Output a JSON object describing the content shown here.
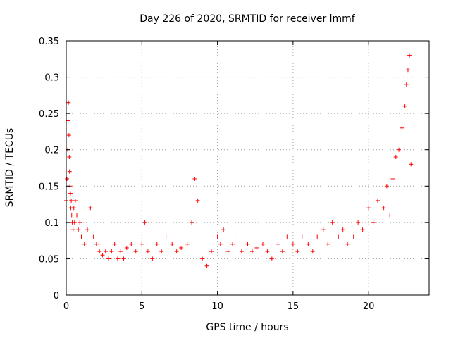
{
  "chart_data": {
    "type": "scatter",
    "title": "Day 226 of 2020, SRMTID for receiver lmmf",
    "xlabel": "GPS time / hours",
    "ylabel": "SRMTID / TECUs",
    "xlim": [
      0,
      24
    ],
    "ylim": [
      0,
      0.35
    ],
    "xticks": [
      0,
      5,
      10,
      15,
      20
    ],
    "yticks": [
      0,
      0.05,
      0.1,
      0.15,
      0.2,
      0.25,
      0.3,
      0.35
    ],
    "xtick_labels": [
      "0",
      "5",
      "10",
      "15",
      "20"
    ],
    "ytick_labels": [
      "0",
      "0.05",
      "0.1",
      "0.15",
      "0.2",
      "0.25",
      "0.3",
      "0.35"
    ],
    "grid": true,
    "marker": "+",
    "color": "#ff0000",
    "series": [
      {
        "name": "SRMTID",
        "x": [
          0.0,
          0.05,
          0.1,
          0.12,
          0.15,
          0.18,
          0.2,
          0.22,
          0.25,
          0.28,
          0.3,
          0.33,
          0.36,
          0.4,
          0.45,
          0.5,
          0.55,
          0.6,
          0.7,
          0.8,
          0.9,
          1.0,
          1.2,
          1.4,
          1.6,
          1.8,
          2.0,
          2.2,
          2.4,
          2.6,
          2.8,
          3.0,
          3.2,
          3.4,
          3.6,
          3.8,
          4.0,
          4.3,
          4.6,
          5.0,
          5.2,
          5.4,
          5.7,
          6.0,
          6.3,
          6.6,
          7.0,
          7.3,
          7.6,
          8.0,
          8.3,
          8.5,
          8.7,
          9.0,
          9.3,
          9.6,
          10.0,
          10.2,
          10.4,
          10.7,
          11.0,
          11.3,
          11.6,
          12.0,
          12.3,
          12.6,
          13.0,
          13.3,
          13.6,
          14.0,
          14.3,
          14.6,
          15.0,
          15.3,
          15.6,
          16.0,
          16.3,
          16.6,
          17.0,
          17.3,
          17.6,
          18.0,
          18.3,
          18.6,
          19.0,
          19.3,
          19.6,
          20.0,
          20.3,
          20.6,
          21.0,
          21.2,
          21.4,
          21.6,
          21.8,
          22.0,
          22.2,
          22.4,
          22.5,
          22.6,
          22.7,
          22.8
        ],
        "y": [
          0.13,
          0.16,
          0.2,
          0.24,
          0.265,
          0.22,
          0.19,
          0.17,
          0.15,
          0.14,
          0.12,
          0.13,
          0.11,
          0.1,
          0.09,
          0.12,
          0.1,
          0.13,
          0.11,
          0.09,
          0.1,
          0.08,
          0.07,
          0.09,
          0.12,
          0.08,
          0.07,
          0.06,
          0.055,
          0.06,
          0.05,
          0.06,
          0.07,
          0.05,
          0.06,
          0.05,
          0.065,
          0.07,
          0.06,
          0.07,
          0.1,
          0.06,
          0.05,
          0.07,
          0.06,
          0.08,
          0.07,
          0.06,
          0.065,
          0.07,
          0.1,
          0.16,
          0.13,
          0.05,
          0.04,
          0.06,
          0.08,
          0.07,
          0.09,
          0.06,
          0.07,
          0.08,
          0.06,
          0.07,
          0.06,
          0.065,
          0.07,
          0.06,
          0.05,
          0.07,
          0.06,
          0.08,
          0.07,
          0.06,
          0.08,
          0.07,
          0.06,
          0.08,
          0.09,
          0.07,
          0.1,
          0.08,
          0.09,
          0.07,
          0.08,
          0.1,
          0.09,
          0.12,
          0.1,
          0.13,
          0.12,
          0.15,
          0.11,
          0.16,
          0.19,
          0.2,
          0.23,
          0.26,
          0.29,
          0.31,
          0.33,
          0.18
        ]
      }
    ]
  }
}
